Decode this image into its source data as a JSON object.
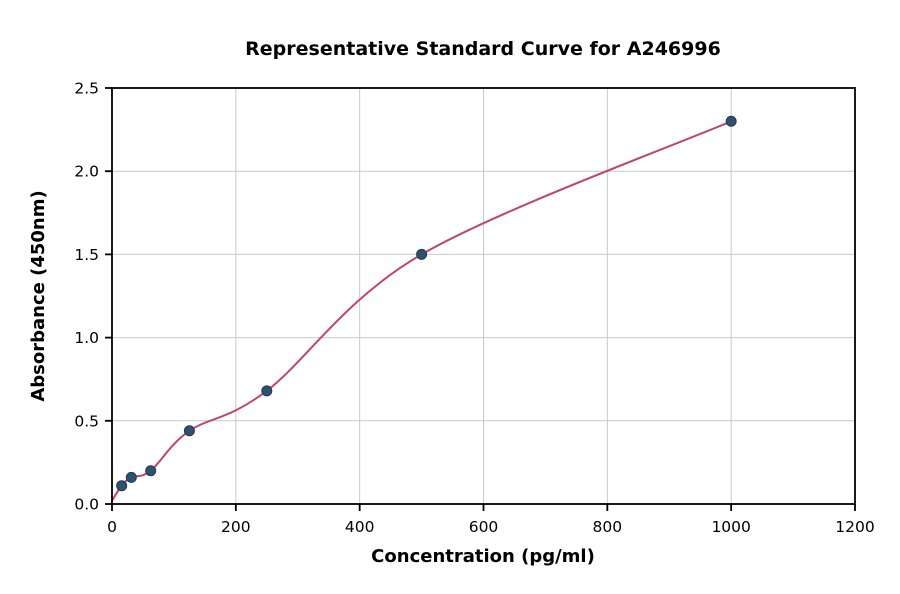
{
  "chart_data": {
    "type": "scatter",
    "title": "Representative Standard Curve for A246996",
    "xlabel": "Concentration (pg/ml)",
    "ylabel": "Absorbance (450nm)",
    "xlim": [
      0,
      1200
    ],
    "ylim": [
      0,
      2.5
    ],
    "x_ticks": [
      0,
      200,
      400,
      600,
      800,
      1000,
      1200
    ],
    "y_ticks": [
      0.0,
      0.5,
      1.0,
      1.5,
      2.0,
      2.5
    ],
    "grid": true,
    "legend": "none",
    "points": {
      "x": [
        15.6,
        31.2,
        62.5,
        125,
        250,
        500,
        1000
      ],
      "y": [
        0.11,
        0.16,
        0.2,
        0.44,
        0.68,
        1.5,
        2.3
      ]
    },
    "curve_start": {
      "x": 0,
      "y": 0.02
    },
    "colors": {
      "point_fill": "#30506e",
      "point_edge": "#22394e",
      "curve": "#bf4767",
      "grid": "#c9c9c9",
      "axis": "#000000",
      "background": "#ffffff"
    }
  }
}
